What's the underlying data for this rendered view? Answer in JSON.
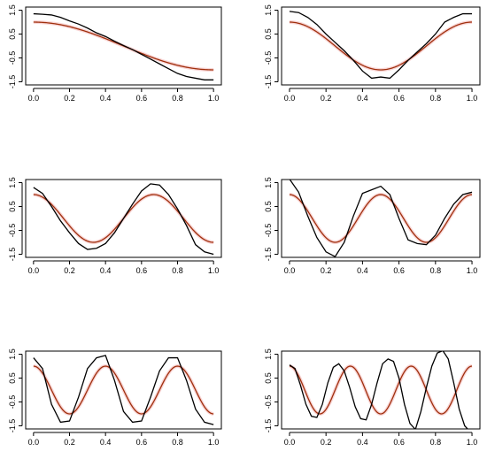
{
  "chart_data": [
    {
      "type": "line",
      "xlim": [
        0,
        1
      ],
      "ylim": [
        -1.5,
        1.5
      ],
      "xticks": [
        "0.0",
        "0.2",
        "0.4",
        "0.6",
        "0.8",
        "1.0"
      ],
      "yticks": [
        "-1.5",
        "-0.5",
        "0.5",
        "1.5"
      ],
      "grid": false,
      "series": [
        {
          "color": "#a0300e",
          "frequency": 0.5,
          "x": [
            0,
            0.2,
            0.4,
            0.5,
            0.6,
            0.8,
            1.0
          ],
          "y": [
            1.0,
            0.81,
            0.31,
            0.0,
            -0.31,
            -0.81,
            -1.0
          ]
        },
        {
          "color": "#000000",
          "x": [
            0.0,
            0.05,
            0.1,
            0.15,
            0.2,
            0.25,
            0.3,
            0.35,
            0.4,
            0.45,
            0.5,
            0.55,
            0.6,
            0.65,
            0.7,
            0.75,
            0.8,
            0.85,
            0.9,
            0.95,
            1.0
          ],
          "y": [
            1.35,
            1.33,
            1.3,
            1.2,
            1.05,
            0.92,
            0.75,
            0.55,
            0.4,
            0.2,
            0.02,
            -0.15,
            -0.35,
            -0.55,
            -0.75,
            -0.95,
            -1.15,
            -1.28,
            -1.35,
            -1.42,
            -1.42
          ]
        }
      ]
    },
    {
      "type": "line",
      "xlim": [
        0,
        1
      ],
      "ylim": [
        -1.5,
        1.5
      ],
      "xticks": [
        "0.0",
        "0.2",
        "0.4",
        "0.6",
        "0.8",
        "1.0"
      ],
      "yticks": [
        "-1.5",
        "-0.5",
        "0.5",
        "1.5"
      ],
      "grid": false,
      "series": [
        {
          "color": "#a0300e",
          "frequency": 1,
          "x": [
            0,
            0.25,
            0.5,
            0.75,
            1.0
          ],
          "y": [
            1.0,
            0.0,
            -1.0,
            0.0,
            1.0
          ]
        },
        {
          "color": "#000000",
          "x": [
            0.0,
            0.05,
            0.1,
            0.15,
            0.2,
            0.25,
            0.3,
            0.35,
            0.4,
            0.45,
            0.5,
            0.55,
            0.6,
            0.65,
            0.7,
            0.75,
            0.8,
            0.85,
            0.9,
            0.95,
            1.0
          ],
          "y": [
            1.45,
            1.4,
            1.2,
            0.9,
            0.5,
            0.15,
            -0.2,
            -0.6,
            -1.05,
            -1.35,
            -1.3,
            -1.35,
            -1.0,
            -0.6,
            -0.25,
            0.1,
            0.5,
            1.0,
            1.2,
            1.35,
            1.35
          ]
        }
      ]
    },
    {
      "type": "line",
      "xlim": [
        0,
        1
      ],
      "ylim": [
        -1.5,
        1.5
      ],
      "xticks": [
        "0.0",
        "0.2",
        "0.4",
        "0.6",
        "0.8",
        "1.0"
      ],
      "yticks": [
        "-1.5",
        "-0.5",
        "0.5",
        "1.5"
      ],
      "grid": false,
      "series": [
        {
          "color": "#a0300e",
          "frequency": 1.5,
          "x": [
            0,
            0.333,
            0.667,
            1.0
          ],
          "y": [
            1.0,
            -1.0,
            1.0,
            -1.0
          ]
        },
        {
          "color": "#000000",
          "x": [
            0.0,
            0.05,
            0.1,
            0.15,
            0.2,
            0.25,
            0.3,
            0.35,
            0.4,
            0.45,
            0.5,
            0.55,
            0.6,
            0.65,
            0.7,
            0.75,
            0.8,
            0.85,
            0.9,
            0.95,
            1.0
          ],
          "y": [
            1.3,
            1.05,
            0.5,
            -0.1,
            -0.6,
            -1.05,
            -1.3,
            -1.25,
            -1.05,
            -0.6,
            0.0,
            0.6,
            1.15,
            1.45,
            1.4,
            1.0,
            0.4,
            -0.3,
            -1.1,
            -1.4,
            -1.5
          ]
        }
      ]
    },
    {
      "type": "line",
      "xlim": [
        0,
        1
      ],
      "ylim": [
        -1.5,
        1.5
      ],
      "xticks": [
        "0.0",
        "0.2",
        "0.4",
        "0.6",
        "0.8",
        "1.0"
      ],
      "yticks": [
        "-1.5",
        "-0.5",
        "0.5",
        "1.5"
      ],
      "grid": false,
      "series": [
        {
          "color": "#a0300e",
          "frequency": 2,
          "x": [
            0,
            0.25,
            0.5,
            0.75,
            1.0
          ],
          "y": [
            1.0,
            -1.0,
            1.0,
            -1.0,
            1.0
          ]
        },
        {
          "color": "#000000",
          "x": [
            0.0,
            0.05,
            0.1,
            0.15,
            0.2,
            0.25,
            0.3,
            0.35,
            0.4,
            0.45,
            0.5,
            0.55,
            0.6,
            0.65,
            0.7,
            0.75,
            0.8,
            0.85,
            0.9,
            0.95,
            1.0
          ],
          "y": [
            1.65,
            1.1,
            0.1,
            -0.8,
            -1.4,
            -1.6,
            -1.0,
            0.1,
            1.05,
            1.2,
            1.35,
            1.0,
            0.0,
            -0.9,
            -1.05,
            -1.1,
            -0.7,
            0.0,
            0.6,
            1.0,
            1.1
          ]
        }
      ]
    },
    {
      "type": "line",
      "xlim": [
        0,
        1
      ],
      "ylim": [
        -1.5,
        1.5
      ],
      "xticks": [
        "0.0",
        "0.2",
        "0.4",
        "0.6",
        "0.8",
        "1.0"
      ],
      "yticks": [
        "-1.5",
        "-0.5",
        "0.5",
        "1.5"
      ],
      "grid": false,
      "series": [
        {
          "color": "#a0300e",
          "frequency": 2.5,
          "x": [
            0,
            0.2,
            0.4,
            0.6,
            0.8,
            1.0
          ],
          "y": [
            1.0,
            -1.0,
            1.0,
            -1.0,
            1.0,
            -1.0
          ]
        },
        {
          "color": "#000000",
          "x": [
            0.0,
            0.05,
            0.1,
            0.15,
            0.2,
            0.25,
            0.3,
            0.35,
            0.4,
            0.45,
            0.5,
            0.55,
            0.6,
            0.65,
            0.7,
            0.75,
            0.8,
            0.85,
            0.9,
            0.95,
            1.0
          ],
          "y": [
            1.35,
            0.9,
            -0.6,
            -1.35,
            -1.3,
            -0.3,
            0.9,
            1.35,
            1.45,
            0.4,
            -0.9,
            -1.35,
            -1.3,
            -0.3,
            0.8,
            1.35,
            1.35,
            0.4,
            -0.8,
            -1.35,
            -1.45
          ]
        }
      ]
    },
    {
      "type": "line",
      "xlim": [
        0,
        1
      ],
      "ylim": [
        -1.5,
        1.5
      ],
      "xticks": [
        "0.0",
        "0.2",
        "0.4",
        "0.6",
        "0.8",
        "1.0"
      ],
      "yticks": [
        "-1.5",
        "-0.5",
        "0.5",
        "1.5"
      ],
      "grid": false,
      "series": [
        {
          "color": "#a0300e",
          "frequency": 3,
          "x": [
            0,
            0.167,
            0.333,
            0.5,
            0.667,
            0.833,
            1.0
          ],
          "y": [
            1.0,
            -1.0,
            1.0,
            -1.0,
            1.0,
            -1.0,
            1.0
          ]
        },
        {
          "color": "#000000",
          "x": [
            0.0,
            0.03,
            0.06,
            0.09,
            0.12,
            0.15,
            0.18,
            0.21,
            0.24,
            0.27,
            0.3,
            0.33,
            0.36,
            0.39,
            0.42,
            0.45,
            0.48,
            0.51,
            0.54,
            0.57,
            0.6,
            0.63,
            0.66,
            0.69,
            0.72,
            0.75,
            0.78,
            0.81,
            0.84,
            0.87,
            0.9,
            0.93,
            0.96,
            0.99
          ],
          "y": [
            1.05,
            0.9,
            0.2,
            -0.6,
            -1.1,
            -1.15,
            -0.6,
            0.3,
            0.95,
            1.1,
            0.8,
            0.1,
            -0.7,
            -1.2,
            -1.25,
            -0.6,
            0.3,
            1.1,
            1.3,
            1.2,
            0.5,
            -0.6,
            -1.4,
            -1.65,
            -0.9,
            0.1,
            1.0,
            1.55,
            1.65,
            1.3,
            0.3,
            -0.8,
            -1.5,
            -1.75
          ]
        }
      ]
    }
  ]
}
